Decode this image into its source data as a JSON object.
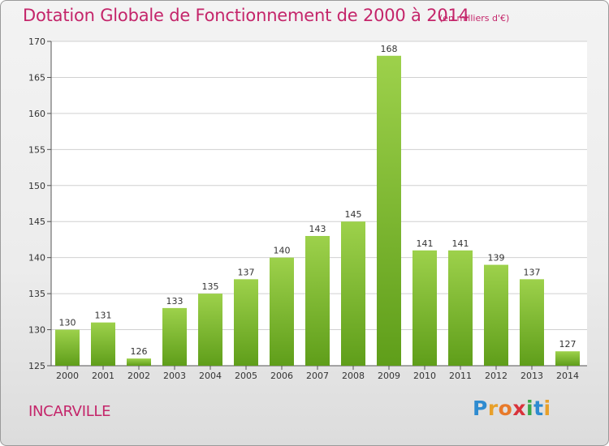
{
  "chart_data": {
    "type": "bar",
    "title": "Dotation Globale de Fonctionnement de 2000 à 2014",
    "unit": "(en milliers d'€)",
    "categories": [
      "2000",
      "2001",
      "2002",
      "2003",
      "2004",
      "2005",
      "2006",
      "2007",
      "2008",
      "2009",
      "2010",
      "2011",
      "2012",
      "2013",
      "2014"
    ],
    "values": [
      130,
      131,
      126,
      133,
      135,
      137,
      140,
      143,
      145,
      168,
      141,
      141,
      139,
      137,
      127
    ],
    "ylim": [
      125,
      170
    ],
    "yticks": [
      125,
      130,
      135,
      140,
      145,
      150,
      155,
      160,
      165,
      170
    ],
    "grid": true,
    "bar_color_top": "#9dd14b",
    "bar_color_bottom": "#5f9e1a"
  },
  "footer": {
    "commune": "INCARVILLE",
    "logo_text": "Proxiti"
  },
  "colors": {
    "accent": "#c4256a",
    "logo_P": "#2e8bd0",
    "logo_r": "#e8a02a",
    "logo_o": "#e87a2a",
    "logo_x": "#d8333b",
    "logo_i": "#3aa84a",
    "logo_t": "#2e8bd0",
    "logo_i2": "#e8a02a"
  }
}
